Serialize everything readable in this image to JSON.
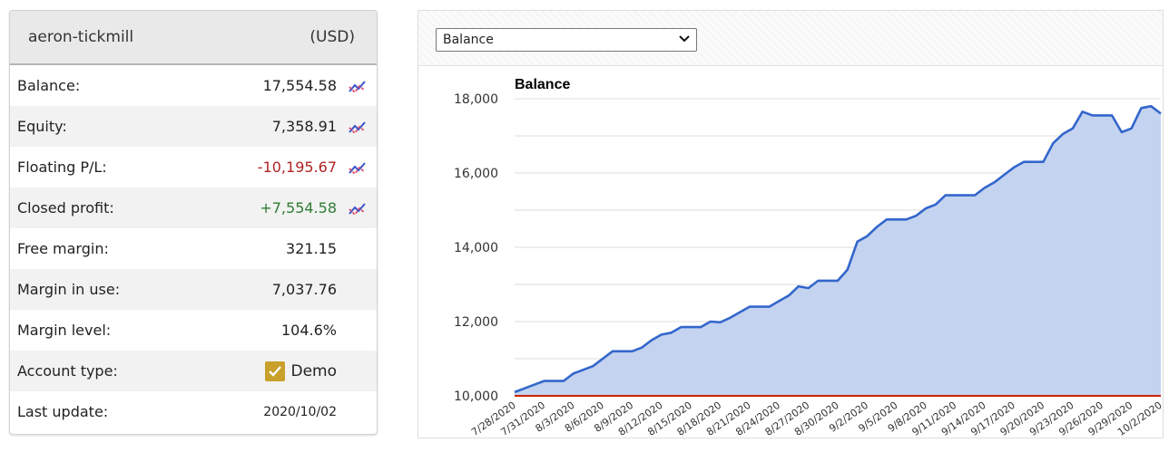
{
  "account": {
    "name": "aeron-tickmill",
    "currency": "(USD)",
    "rows": [
      {
        "label": "Balance:",
        "value": "17,554.58",
        "tone": "normal",
        "chart_icon": true
      },
      {
        "label": "Equity:",
        "value": "7,358.91",
        "tone": "normal",
        "chart_icon": true
      },
      {
        "label": "Floating P/L:",
        "value": "-10,195.67",
        "tone": "neg",
        "chart_icon": true
      },
      {
        "label": "Closed profit:",
        "value": "+7,554.58",
        "tone": "pos",
        "chart_icon": true
      },
      {
        "label": "Free margin:",
        "value": "321.15",
        "tone": "normal",
        "chart_icon": false
      },
      {
        "label": "Margin in use:",
        "value": "7,037.76",
        "tone": "normal",
        "chart_icon": false
      },
      {
        "label": "Margin level:",
        "value": "104.6%",
        "tone": "normal",
        "chart_icon": false
      },
      {
        "label": "Account type:",
        "value": "Demo",
        "tone": "demo",
        "chart_icon": false
      },
      {
        "label": "Last update:",
        "value": "2020/10/02",
        "tone": "small",
        "chart_icon": false
      }
    ],
    "icon": "chart-line-icon",
    "colors": {
      "negative": "#b22222",
      "positive": "#2e7d32",
      "demo_check": "#c8a02a"
    }
  },
  "chart_panel": {
    "selector": {
      "value": "Balance",
      "icon": "chevron-down-icon"
    }
  },
  "chart_data": {
    "type": "area",
    "title": "Balance",
    "xlabel": "",
    "ylabel": "",
    "ylim": [
      10000,
      18000
    ],
    "yticks": [
      10000,
      12000,
      14000,
      16000,
      18000
    ],
    "ytick_labels": [
      "10,000",
      "12,000",
      "14,000",
      "16,000",
      "18,000"
    ],
    "grid": true,
    "legend": "none",
    "colors": {
      "line": "#3366cc",
      "fill": "#c4d3ef",
      "baseline": "#cc2200"
    },
    "x_tick_labels": [
      "7/28/2020",
      "7/31/2020",
      "8/3/2020",
      "8/6/2020",
      "8/9/2020",
      "8/12/2020",
      "8/15/2020",
      "8/18/2020",
      "8/21/2020",
      "8/24/2020",
      "8/27/2020",
      "8/30/2020",
      "9/2/2020",
      "9/5/2020",
      "9/8/2020",
      "9/11/2020",
      "9/14/2020",
      "9/17/2020",
      "9/20/2020",
      "9/23/2020",
      "9/26/2020",
      "9/29/2020",
      "10/2/2020"
    ],
    "series": [
      {
        "name": "Balance",
        "x": [
          "7/28/2020",
          "7/29/2020",
          "7/30/2020",
          "7/31/2020",
          "8/1/2020",
          "8/2/2020",
          "8/3/2020",
          "8/4/2020",
          "8/5/2020",
          "8/6/2020",
          "8/7/2020",
          "8/8/2020",
          "8/9/2020",
          "8/10/2020",
          "8/11/2020",
          "8/12/2020",
          "8/13/2020",
          "8/14/2020",
          "8/15/2020",
          "8/16/2020",
          "8/17/2020",
          "8/18/2020",
          "8/19/2020",
          "8/20/2020",
          "8/21/2020",
          "8/22/2020",
          "8/23/2020",
          "8/24/2020",
          "8/25/2020",
          "8/26/2020",
          "8/27/2020",
          "8/28/2020",
          "8/29/2020",
          "8/30/2020",
          "8/31/2020",
          "9/1/2020",
          "9/2/2020",
          "9/3/2020",
          "9/4/2020",
          "9/5/2020",
          "9/6/2020",
          "9/7/2020",
          "9/8/2020",
          "9/9/2020",
          "9/10/2020",
          "9/11/2020",
          "9/12/2020",
          "9/13/2020",
          "9/14/2020",
          "9/15/2020",
          "9/16/2020",
          "9/17/2020",
          "9/18/2020",
          "9/19/2020",
          "9/20/2020",
          "9/21/2020",
          "9/22/2020",
          "9/23/2020",
          "9/24/2020",
          "9/25/2020",
          "9/26/2020",
          "9/27/2020",
          "9/28/2020",
          "9/29/2020",
          "9/30/2020",
          "10/1/2020",
          "10/2/2020"
        ],
        "values": [
          10100,
          10200,
          10300,
          10400,
          10400,
          10400,
          10600,
          10700,
          10800,
          11000,
          11200,
          11200,
          11200,
          11300,
          11500,
          11650,
          11700,
          11850,
          11850,
          11850,
          12000,
          11980,
          12100,
          12250,
          12400,
          12400,
          12400,
          12550,
          12700,
          12950,
          12900,
          13100,
          13100,
          13100,
          13400,
          14150,
          14300,
          14550,
          14750,
          14750,
          14750,
          14850,
          15050,
          15150,
          15400,
          15400,
          15400,
          15400,
          15600,
          15750,
          15950,
          16150,
          16300,
          16300,
          16300,
          16800,
          17050,
          17200,
          17650,
          17550,
          17550,
          17550,
          17100,
          17200,
          17750,
          17800,
          17600
        ]
      },
      {
        "name": "Baseline",
        "values": [
          10000,
          10000
        ]
      }
    ]
  }
}
